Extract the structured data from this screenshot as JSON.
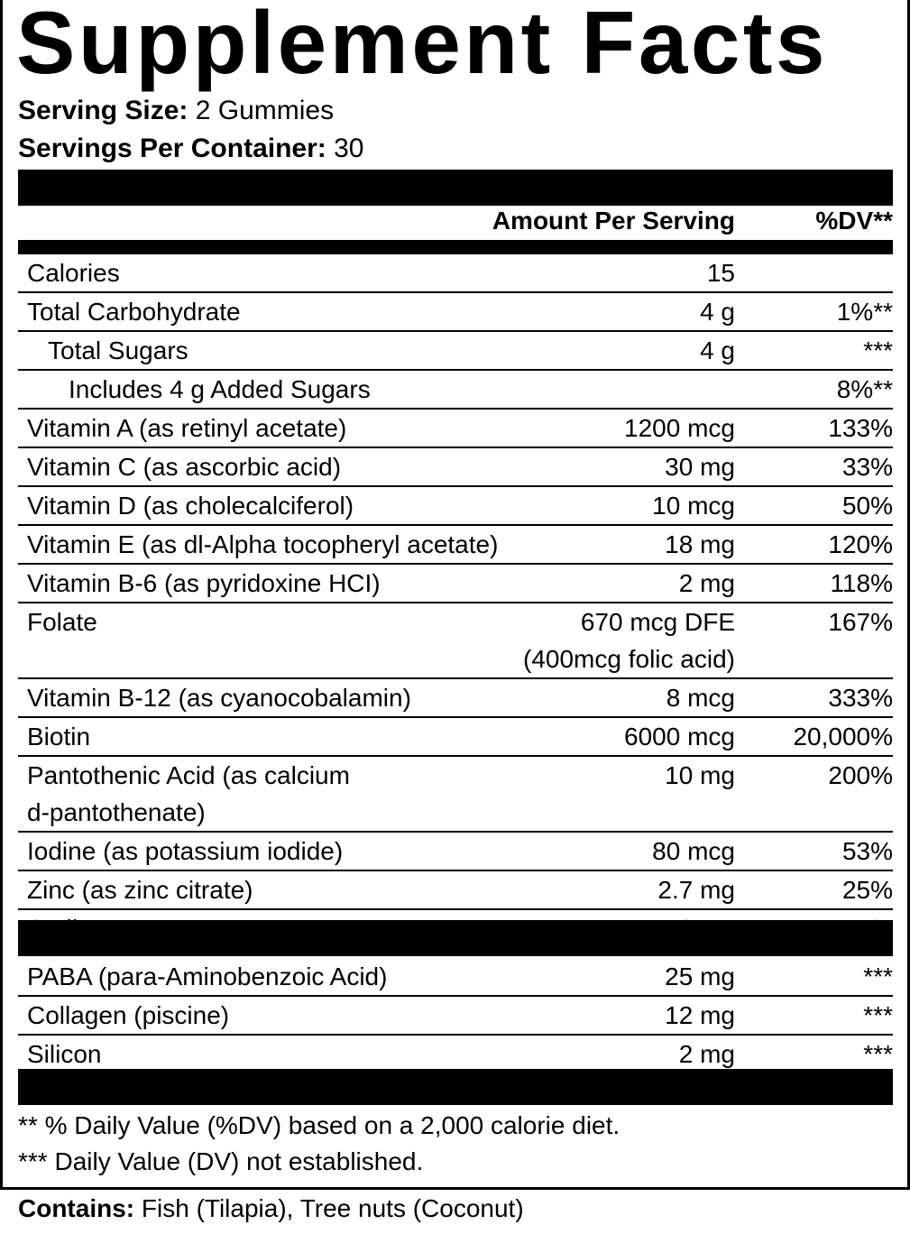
{
  "title": "Supplement Facts",
  "serving_size": {
    "label": "Serving Size:",
    "value": " 2 Gummies"
  },
  "servings_per_container": {
    "label": "Servings Per Container:",
    "value": " 30"
  },
  "header": {
    "amount": "Amount Per Serving",
    "dv": "%DV**"
  },
  "nutrients": [
    {
      "name": "Calories",
      "amount": "15",
      "dv": "",
      "indent": 0
    },
    {
      "name": "Total Carbohydrate",
      "amount": "4 g",
      "dv": "1%**",
      "indent": 0
    },
    {
      "name": "Total Sugars",
      "amount": "4 g",
      "dv": "***",
      "indent": 1
    },
    {
      "name": "Includes 4 g Added Sugars",
      "amount": "",
      "dv": "8%**",
      "indent": 2
    },
    {
      "name": "Vitamin A (as retinyl acetate)",
      "amount": "1200 mcg",
      "dv": "133%",
      "indent": 0
    },
    {
      "name": "Vitamin C (as ascorbic acid)",
      "amount": "30 mg",
      "dv": "33%",
      "indent": 0
    },
    {
      "name": "Vitamin D (as cholecalciferol)",
      "amount": "10 mcg",
      "dv": "50%",
      "indent": 0
    },
    {
      "name": "Vitamin E (as dl-Alpha tocopheryl acetate)",
      "amount": "18 mg",
      "dv": "120%",
      "indent": 0
    },
    {
      "name": "Vitamin B-6 (as pyridoxine HCI)",
      "amount": "2 mg",
      "dv": "118%",
      "indent": 0
    },
    {
      "name": "Folate",
      "amount": "670 mcg DFE\n(400mcg folic acid)",
      "dv": "167%",
      "indent": 0
    },
    {
      "name": "Vitamin B-12 (as cyanocobalamin)",
      "amount": "8 mcg",
      "dv": "333%",
      "indent": 0
    },
    {
      "name": "Biotin",
      "amount": "6000 mcg",
      "dv": "20,000%",
      "indent": 0
    },
    {
      "name": "Pantothenic Acid (as calcium\nd-pantothenate)",
      "amount": "10 mg",
      "dv": "200%",
      "indent": 0
    },
    {
      "name": "Iodine (as potassium iodide)",
      "amount": "80 mcg",
      "dv": "53%",
      "indent": 0
    },
    {
      "name": "Zinc (as zinc citrate)",
      "amount": "2.7 mg",
      "dv": "25%",
      "indent": 0
    },
    {
      "name": "Sodium",
      "amount": "10 mg",
      "dv": "<1%",
      "indent": 0
    }
  ],
  "other_ingredients": [
    {
      "name": "PABA (para-Aminobenzoic Acid)",
      "amount": "25 mg",
      "dv": "***"
    },
    {
      "name": "Collagen (piscine)",
      "amount": "12 mg",
      "dv": "***"
    },
    {
      "name": "Silicon",
      "amount": "2 mg",
      "dv": "***"
    }
  ],
  "footnotes": [
    "** % Daily Value (%DV) based on a 2,000 calorie diet.",
    "*** Daily Value (DV) not established."
  ],
  "contains": {
    "label": "Contains:",
    "value": " Fish (Tilapia), Tree nuts (Coconut)"
  }
}
